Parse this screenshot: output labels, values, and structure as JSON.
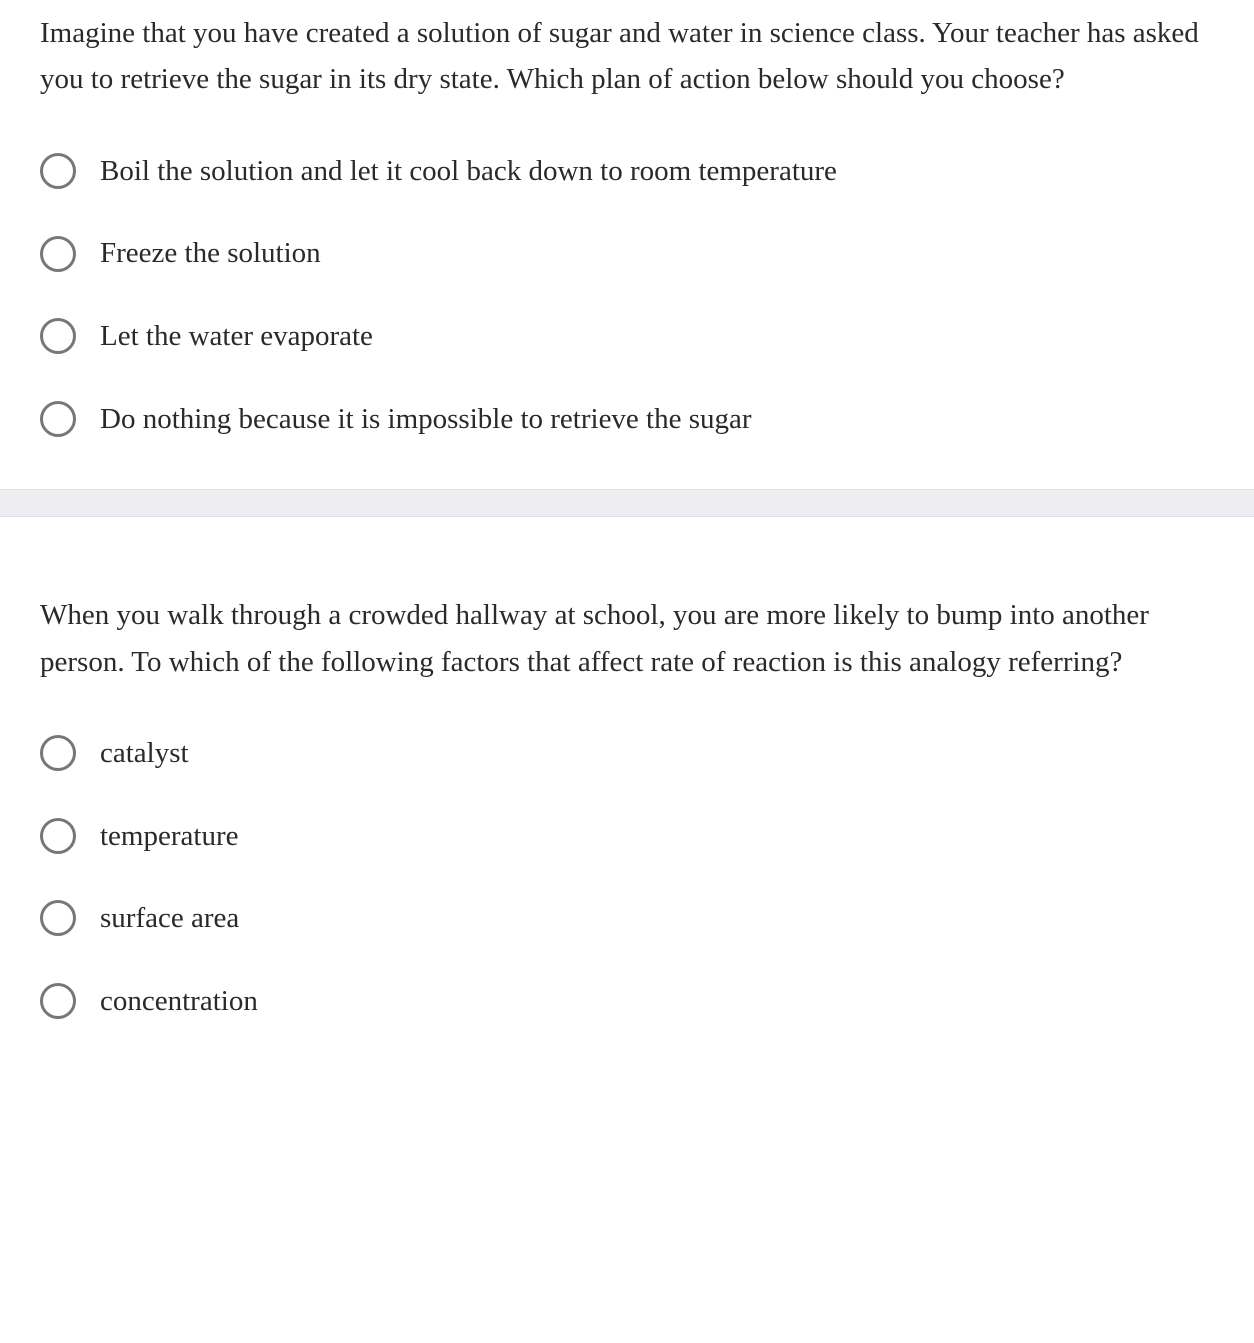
{
  "colors": {
    "text": "#2a2a2a",
    "radio_border": "#777777",
    "divider_bg": "#ededf2",
    "background": "#ffffff"
  },
  "typography": {
    "font_family": "Georgia, serif",
    "question_fontsize": 29,
    "option_fontsize": 29
  },
  "questions": [
    {
      "prompt": "Imagine that you have created a solution of sugar and water in science class. Your teacher has asked you to retrieve the sugar in its dry state. Which plan of action below should you choose?",
      "options": [
        "Boil the solution and let it cool back down to room temperature",
        "Freeze the solution",
        "Let the water evaporate",
        "Do nothing because it is impossible to retrieve the sugar"
      ]
    },
    {
      "prompt": "When you walk through a crowded hallway at school, you are more likely to bump into another person. To which of the following factors that affect rate of reaction is this analogy referring?",
      "options": [
        "catalyst",
        "temperature",
        "surface area",
        "concentration"
      ]
    }
  ]
}
